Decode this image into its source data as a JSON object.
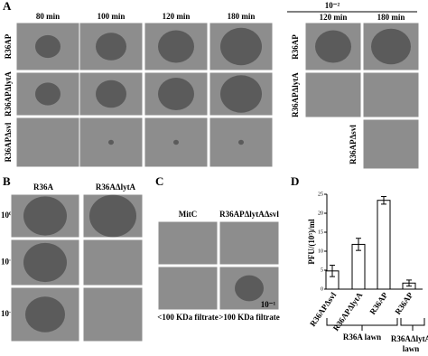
{
  "panel_a": {
    "label": "A",
    "columns": [
      "80 min",
      "100 min",
      "120 min",
      "180 min"
    ],
    "rows": [
      "R36AP",
      "R36APΔlytA",
      "R36APΔsvl"
    ],
    "dilution": {
      "label": "10⁻²",
      "columns": [
        "120 min",
        "180 min"
      ],
      "rows": [
        "R36AP",
        "R36APΔlytA",
        "R36APΔsvl"
      ]
    }
  },
  "panel_b": {
    "label": "B",
    "columns": [
      "R36A",
      "R36AΔlytA"
    ],
    "rows": [
      "10⁰",
      "10⁻¹",
      "10⁻²"
    ]
  },
  "panel_c": {
    "label": "C",
    "columns": [
      "MitC",
      "R36APΔlytAΔsvl"
    ],
    "inset_label": "10⁻¹",
    "footers": [
      "<100 KDa filtrate",
      ">100 KDa filtrate"
    ]
  },
  "chart_data": {
    "type": "bar",
    "panel_label": "D",
    "y_label": "PFU/(10⁵)/ml",
    "categories": [
      "R36APΔsvl",
      "R36APΔlytA",
      "R36AP",
      "R36AP"
    ],
    "values": [
      4.8,
      11.8,
      23.4,
      1.6
    ],
    "errors": [
      1.5,
      1.6,
      1.0,
      0.8
    ],
    "color": "#ffffff",
    "ylim": [
      0,
      25
    ],
    "yticks": [
      0,
      5,
      10,
      15,
      20,
      25
    ],
    "group_labels": [
      "R36A lawn",
      "R36AΔlytA",
      "lawn"
    ]
  }
}
